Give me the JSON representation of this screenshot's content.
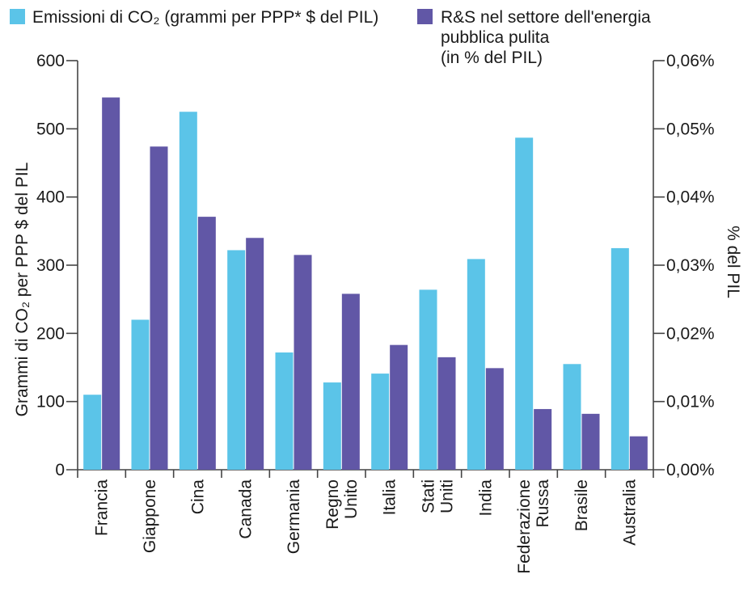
{
  "chart_data": {
    "type": "bar",
    "categories": [
      "Francia",
      "Giappone",
      "Cina",
      "Canada",
      "Germania",
      "Regno Unito",
      "Italia",
      "Stati Uniti",
      "India",
      "Federazione Russa",
      "Brasile",
      "Australia"
    ],
    "category_lines": [
      [
        "Francia"
      ],
      [
        "Giappone"
      ],
      [
        "Cina"
      ],
      [
        "Canada"
      ],
      [
        "Germania"
      ],
      [
        "Regno",
        "Unito"
      ],
      [
        "Italia"
      ],
      [
        "Stati",
        "Uniti"
      ],
      [
        "India"
      ],
      [
        "Federazione",
        "Russa"
      ],
      [
        "Brasile"
      ],
      [
        "Australia"
      ]
    ],
    "series": [
      {
        "name": "Emissioni di CO₂ (grammi per PPP* $ del PIL)",
        "axis": "left",
        "color": "#5bc4e8",
        "values": [
          110,
          220,
          525,
          322,
          172,
          128,
          141,
          264,
          309,
          487,
          155,
          325
        ]
      },
      {
        "name": "R&S nel settore dell'energia pubblica pulita (in % del PIL)",
        "name_lines": [
          "R&S nel settore dell'energia",
          "pubblica pulita",
          "(in % del PIL)"
        ],
        "axis": "right",
        "color": "#6157a6",
        "values": [
          0.0546,
          0.0474,
          0.0371,
          0.034,
          0.0315,
          0.0258,
          0.0183,
          0.0165,
          0.0149,
          0.0089,
          0.0082,
          0.0049
        ]
      }
    ],
    "ylabel": "Grammi di CO₂ per PPP $ del PIL",
    "y2label": "% del PIL",
    "ylim": [
      0,
      600
    ],
    "y2lim": [
      0,
      0.06
    ],
    "yticks": [
      "0",
      "100",
      "200",
      "300",
      "400",
      "500",
      "600"
    ],
    "y2ticks": [
      "0,00%",
      "0,01%",
      "0,02%",
      "0,03%",
      "0,04%",
      "0,05%",
      "0,06%"
    ],
    "grid": false,
    "legend_position": "top"
  }
}
